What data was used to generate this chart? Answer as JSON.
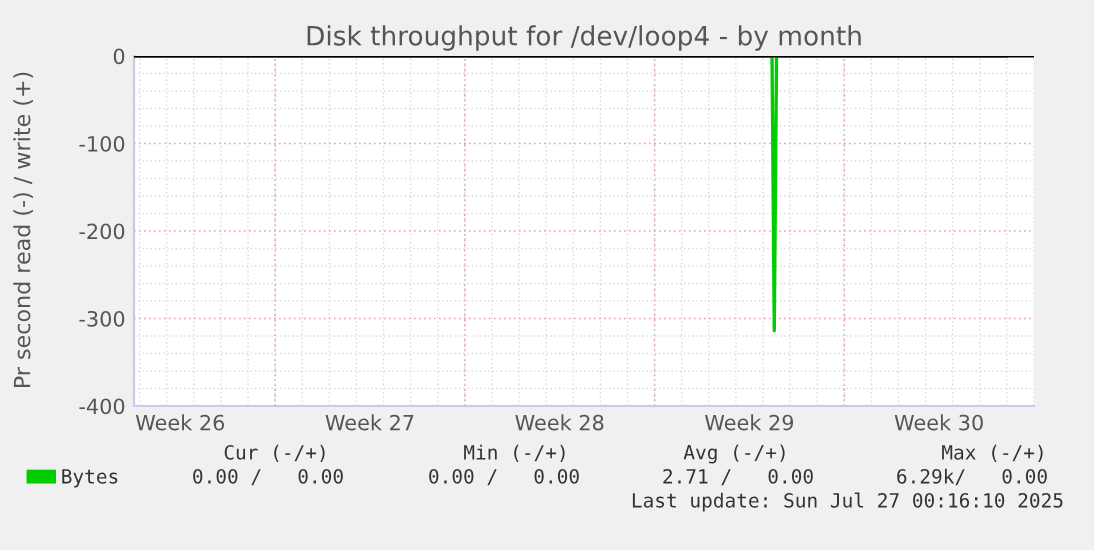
{
  "chart_data": {
    "type": "line",
    "title": "Disk throughput for /dev/loop4 - by month",
    "ylabel": "Pr second read (-) / write (+)",
    "x": [
      "2025-06-24T19:00",
      "2025-07-18T08:00",
      "2025-07-18T10:00",
      "2025-07-18T12:00",
      "2025-07-27T00:00"
    ],
    "series": [
      {
        "name": "Bytes",
        "color": "#00cc00",
        "values": [
          0,
          0,
          -314,
          0,
          0
        ]
      }
    ],
    "xlim": [
      "2025-06-24T19:00",
      "2025-07-28T00:00"
    ],
    "xticks": [
      {
        "value": "2025-06-26T12:00",
        "label": "Week 26"
      },
      {
        "value": "2025-07-03T12:00",
        "label": "Week 27"
      },
      {
        "value": "2025-07-10T12:00",
        "label": "Week 28"
      },
      {
        "value": "2025-07-17T12:00",
        "label": "Week 29"
      },
      {
        "value": "2025-07-24T12:00",
        "label": "Week 30"
      }
    ],
    "ylim": [
      -400,
      0
    ],
    "yticks": [
      -400,
      -300,
      -200,
      -100,
      0
    ],
    "ref_lines": [
      {
        "axis": "y",
        "value": 0,
        "color": "#000000"
      }
    ],
    "grid": true,
    "legend": "bottom",
    "annotations": [
      "Cur (-/+)",
      "Min (-/+)",
      "Avg (-/+)",
      "Max (-/+)",
      "0.00 /   0.00",
      "0.00 /   0.00",
      "2.71 /   0.00",
      "6.29k/   0.00",
      "Last update: Sun Jul 27 00:16:10 2025"
    ]
  }
}
